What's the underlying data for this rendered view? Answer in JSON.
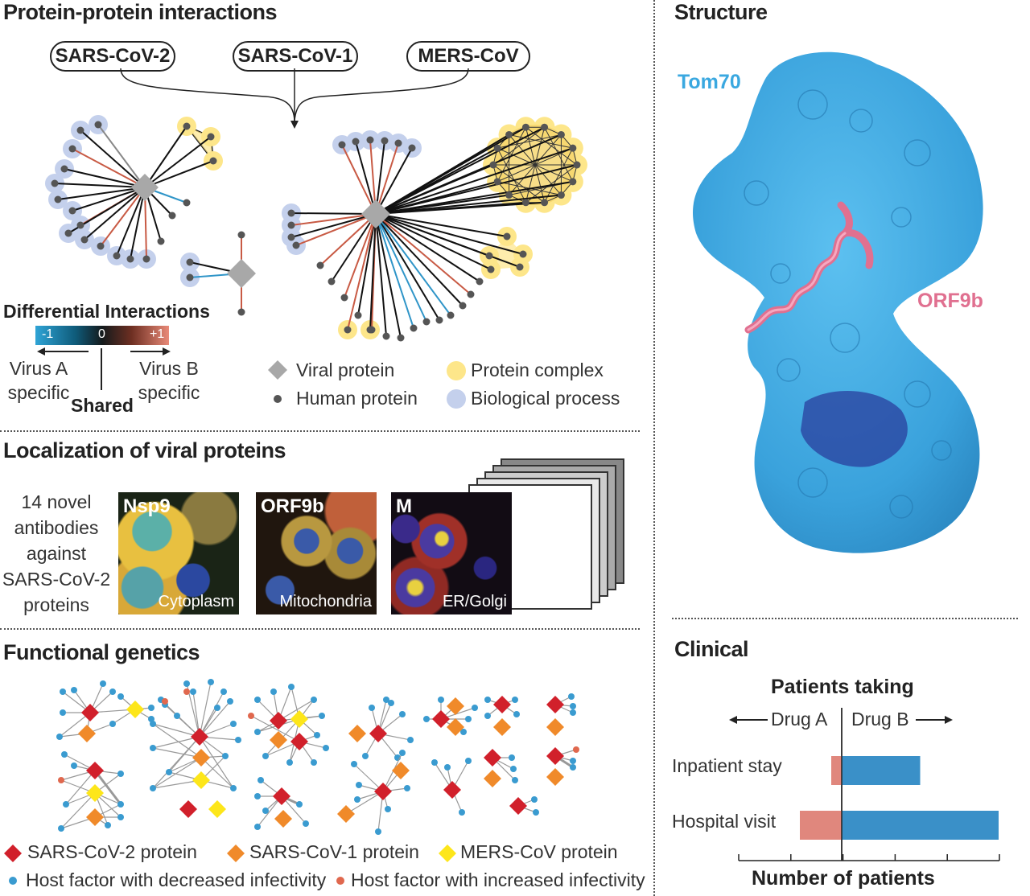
{
  "ppi": {
    "title": "Protein-protein interactions",
    "viruses": [
      "SARS-CoV-2",
      "SARS-CoV-1",
      "MERS-CoV"
    ],
    "diff_title": "Differential Interactions",
    "scale_ticks": [
      "-1",
      "0",
      "+1"
    ],
    "virus_a": [
      "Virus A",
      "specific"
    ],
    "virus_b": [
      "Virus B",
      "specific"
    ],
    "shared": "Shared",
    "legend": {
      "viral": "Viral protein",
      "human": "Human protein",
      "complex": "Protein complex",
      "process": "Biological process"
    },
    "colors": {
      "viral": "#a8a8a8",
      "human": "#555555",
      "complex": "#fde68a",
      "process": "#c4d0ec",
      "specific_a": "#2f95c8",
      "specific_b": "#c85a44"
    }
  },
  "localization": {
    "title": "Localization of viral proteins",
    "desc": [
      "14 novel",
      "antibodies",
      "against",
      "SARS-CoV-2",
      "proteins"
    ],
    "panels": [
      {
        "protein": "Nsp9",
        "location": "Cytoplasm"
      },
      {
        "protein": "ORF9b",
        "location": "Mitochondria"
      },
      {
        "protein": "M",
        "location": "ER/Golgi"
      }
    ]
  },
  "genetics": {
    "title": "Functional genetics",
    "legend": {
      "sars2": "SARS-CoV-2 protein",
      "sars1": "SARS-CoV-1 protein",
      "mers": "MERS-CoV protein",
      "decreased": "Host factor with decreased infectivity",
      "increased": "Host factor with increased infectivity"
    },
    "colors": {
      "sars2": "#d1202b",
      "sars1": "#f08a2a",
      "mers": "#fde61a",
      "decreased": "#3a9bd0",
      "increased": "#e0684e"
    }
  },
  "structure": {
    "title": "Structure",
    "tom70": "Tom70",
    "orf9b": "ORF9b",
    "colors": {
      "tom70": "#3aa8e0",
      "orf9b": "#e07090"
    }
  },
  "clinical": {
    "title": "Clinical",
    "patients_taking": "Patients taking",
    "drug_a": "Drug A",
    "drug_b": "Drug B",
    "xlabel": "Number of patients"
  },
  "chart_data": {
    "type": "bar",
    "orientation": "horizontal",
    "categories": [
      "Inpatient stay",
      "Hospital visit"
    ],
    "series": [
      {
        "name": "Drug A",
        "values": [
          -0.2,
          -0.8
        ],
        "color": "#e0877d"
      },
      {
        "name": "Drug B",
        "values": [
          1.5,
          3.0
        ],
        "color": "#3a90c8"
      }
    ],
    "xlabel": "Number of patients",
    "xlim": [
      -2,
      3.0
    ],
    "ticks": 6
  }
}
